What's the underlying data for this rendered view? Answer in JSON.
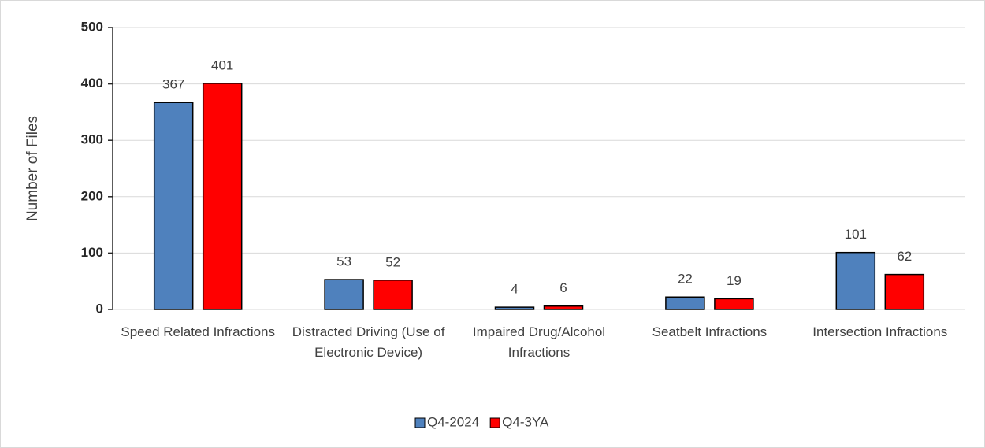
{
  "chart_data": {
    "type": "bar",
    "y_label": "Number of Files",
    "categories": [
      "Speed Related Infractions",
      "Distracted Driving (Use of Electronic Device)",
      "Impaired Drug/Alcohol Infractions",
      "Seatbelt Infractions",
      "Intersection Infractions"
    ],
    "series": [
      {
        "name": "Q4-2024",
        "color": "#4f81bd",
        "values": [
          367,
          53,
          4,
          22,
          101
        ]
      },
      {
        "name": "Q4-3YA",
        "color": "#ff0000",
        "values": [
          401,
          52,
          6,
          19,
          62
        ]
      }
    ],
    "ylim": [
      0,
      500
    ],
    "yticks": [
      0,
      100,
      200,
      300,
      400,
      500
    ],
    "grid": true,
    "legend": "bottom"
  }
}
